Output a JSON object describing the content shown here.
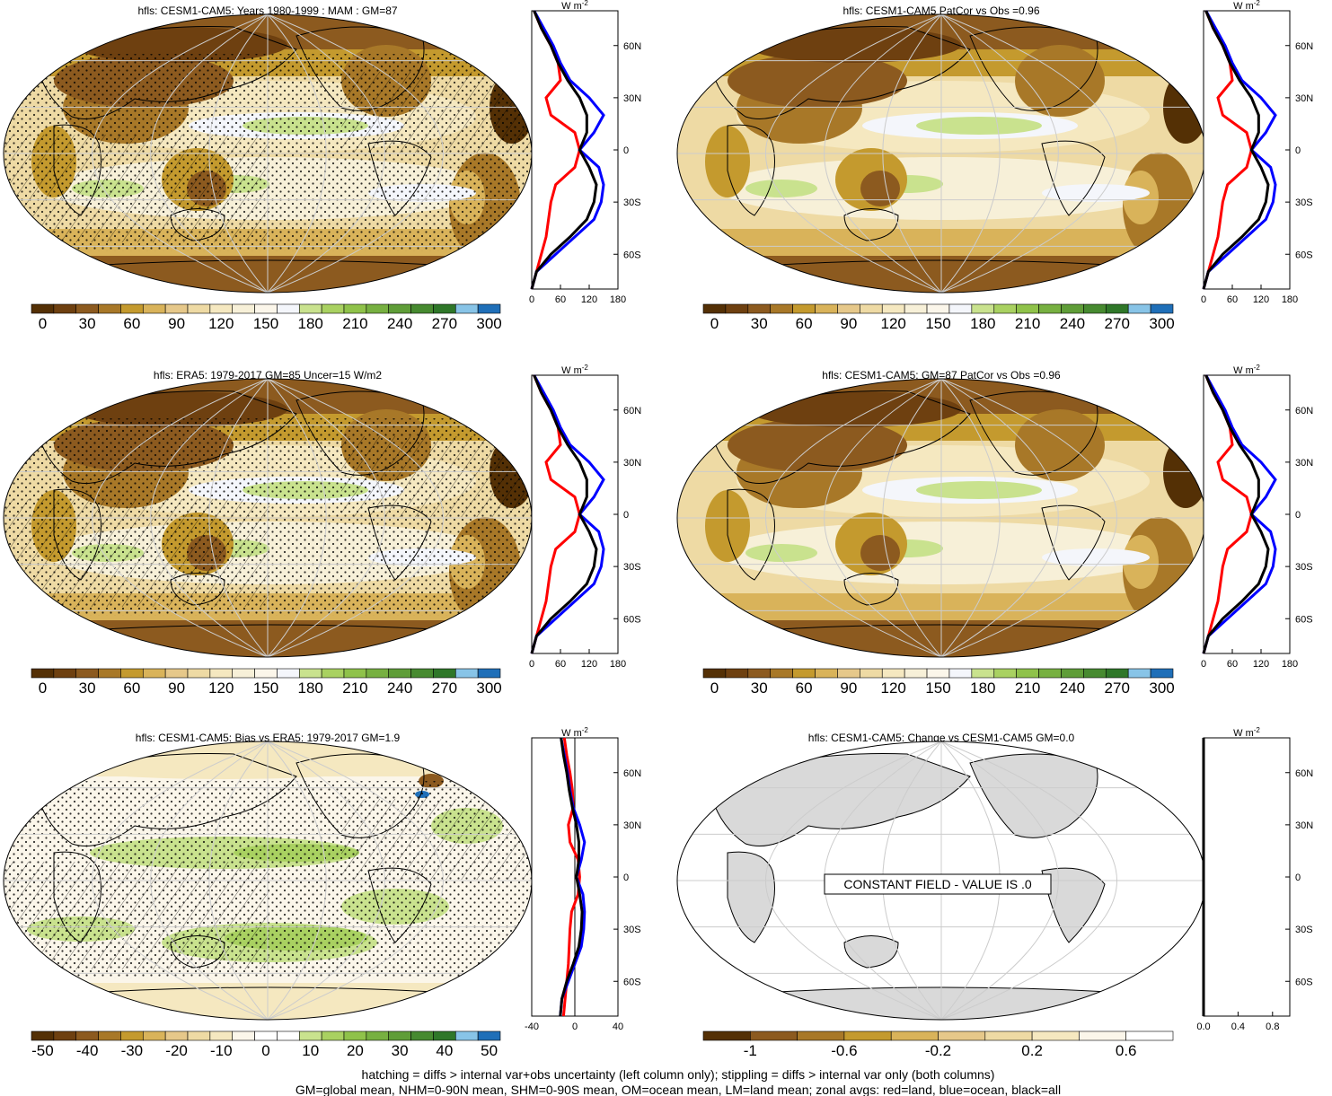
{
  "colors": {
    "abs_scale": [
      "#543005",
      "#6e4010",
      "#8c5a1f",
      "#a87828",
      "#c49a2e",
      "#d9b35a",
      "#e6c88a",
      "#eedaa4",
      "#f5e8c0",
      "#f7f0d8",
      "#fbf6ea",
      "#f4f6fb",
      "#c9e28e",
      "#a9d161",
      "#8fc24a",
      "#77b041",
      "#5f9d38",
      "#478a30",
      "#2f7729",
      "#88c4e7",
      "#1f6fb8"
    ],
    "diff_scale": [
      "#543005",
      "#6e4010",
      "#8c5a1f",
      "#a87828",
      "#c49a2e",
      "#d9b35a",
      "#e6c88a",
      "#eedaa4",
      "#f5e8c0",
      "#fbf6ea",
      "#ffffff",
      "#ffffff",
      "#c9e28e",
      "#a9d161",
      "#8fc24a",
      "#77b041",
      "#5f9d38",
      "#478a30",
      "#2f7729",
      "#88c4e7",
      "#1f6fb8"
    ],
    "change_scale": [
      "#543005",
      "#8c5a1f",
      "#a87828",
      "#c49a2e",
      "#d9b35a",
      "#e6c88a",
      "#eedaa4",
      "#f5e8c0",
      "#fbf6ea",
      "#ffffff"
    ],
    "land_line": "#ff0000",
    "ocean_line": "#0000ff",
    "all_line": "#000000"
  },
  "panels": [
    {
      "title": "hfls: CESM1-CAM5: Years 1980-1999 : MAM : GM=87",
      "cb_labels": [
        "0",
        "30",
        "60",
        "90",
        "120",
        "150",
        "180",
        "210",
        "240",
        "270",
        "300"
      ],
      "cb_type": "abs",
      "zx_labels": [
        "0",
        "60",
        "120",
        "180"
      ],
      "zx_range": [
        0,
        180
      ],
      "lat_labels": [
        "60N",
        "30N",
        "0",
        "30S",
        "60S"
      ],
      "w_label": "W m",
      "stipple": true
    },
    {
      "title": "hfls: CESM1-CAM5 PatCor vs Obs =0.96",
      "cb_labels": [
        "0",
        "30",
        "60",
        "90",
        "120",
        "150",
        "180",
        "210",
        "240",
        "270",
        "300"
      ],
      "cb_type": "abs",
      "zx_labels": [
        "0",
        "60",
        "120",
        "180"
      ],
      "zx_range": [
        0,
        180
      ],
      "lat_labels": [
        "60N",
        "30N",
        "0",
        "30S",
        "60S"
      ],
      "w_label": "W m",
      "stipple": false
    },
    {
      "title": "hfls: ERA5: 1979-2017 GM=85 Uncer=15 W/m2",
      "cb_labels": [
        "0",
        "30",
        "60",
        "90",
        "120",
        "150",
        "180",
        "210",
        "240",
        "270",
        "300"
      ],
      "cb_type": "abs",
      "zx_labels": [
        "0",
        "60",
        "120",
        "180"
      ],
      "zx_range": [
        0,
        180
      ],
      "lat_labels": [
        "60N",
        "30N",
        "0",
        "30S",
        "60S"
      ],
      "w_label": "W m",
      "stipple": true
    },
    {
      "title": "hfls: CESM1-CAM5: GM=87 PatCor vs Obs =0.96",
      "cb_labels": [
        "0",
        "30",
        "60",
        "90",
        "120",
        "150",
        "180",
        "210",
        "240",
        "270",
        "300"
      ],
      "cb_type": "abs",
      "zx_labels": [
        "0",
        "60",
        "120",
        "180"
      ],
      "zx_range": [
        0,
        180
      ],
      "lat_labels": [
        "60N",
        "30N",
        "0",
        "30S",
        "60S"
      ],
      "w_label": "W m",
      "stipple": false
    },
    {
      "title": "hfls: CESM1-CAM5: Bias vs ERA5: 1979-2017 GM=1.9",
      "cb_labels": [
        "-50",
        "-40",
        "-30",
        "-20",
        "-10",
        "0",
        "10",
        "20",
        "30",
        "40",
        "50"
      ],
      "cb_type": "diff",
      "zx_labels": [
        "-40",
        "0",
        "40"
      ],
      "zx_range": [
        -40,
        40
      ],
      "lat_labels": [
        "60N",
        "30N",
        "0",
        "30S",
        "60S"
      ],
      "w_label": "W m",
      "stipple": true
    },
    {
      "title": "hfls: CESM1-CAM5: Change vs CESM1-CAM5 GM=0.0",
      "cb_labels": [
        "-1",
        "-0.6",
        "-0.2",
        "0.2",
        "0.6"
      ],
      "cb_type": "change",
      "zx_labels": [
        "0.0",
        "0.4",
        "0.8"
      ],
      "zx_range": [
        0,
        1
      ],
      "lat_labels": [
        "60N",
        "30N",
        "0",
        "30S",
        "60S"
      ],
      "w_label": "W m",
      "stipple": false,
      "constant_label": "CONSTANT FIELD - VALUE IS .0"
    }
  ],
  "chart_data": [
    {
      "type": "line",
      "title": "",
      "xlabel": "W m-2",
      "xlim": [
        0,
        180
      ],
      "y": [
        -80,
        -70,
        -60,
        -50,
        -40,
        -30,
        -20,
        -10,
        0,
        10,
        20,
        30,
        40,
        50,
        60,
        70,
        80
      ],
      "series": [
        {
          "name": "red=land",
          "values": [
            0,
            10,
            20,
            30,
            35,
            40,
            50,
            90,
            100,
            90,
            40,
            30,
            60,
            55,
            40,
            20,
            5
          ]
        },
        {
          "name": "blue=ocean",
          "values": [
            0,
            10,
            50,
            90,
            130,
            145,
            150,
            140,
            100,
            130,
            150,
            120,
            80,
            60,
            45,
            25,
            5
          ]
        },
        {
          "name": "black=all",
          "values": [
            0,
            10,
            40,
            80,
            115,
            130,
            135,
            120,
            100,
            115,
            115,
            100,
            75,
            55,
            40,
            20,
            5
          ]
        }
      ]
    }
  ],
  "footer": {
    "line1": "hatching = diffs > internal var+obs uncertainty (left column only); stippling = diffs > internal var only (both columns)",
    "line2": "GM=global mean, NHM=0-90N mean, SHM=0-90S mean, OM=ocean mean, LM=land mean; zonal avgs: red=land, blue=ocean, black=all"
  }
}
